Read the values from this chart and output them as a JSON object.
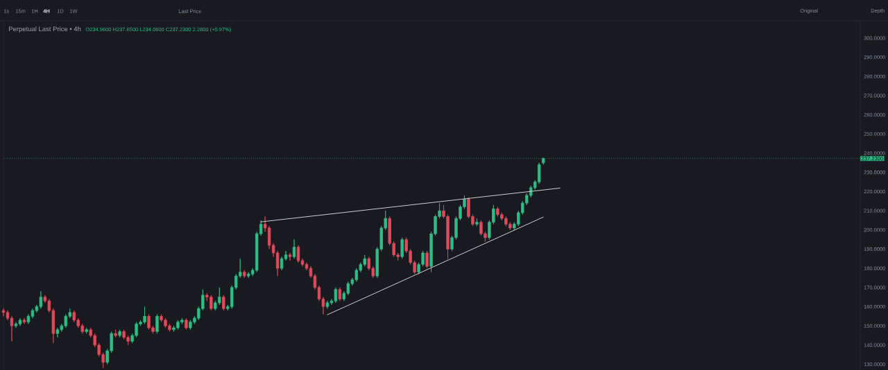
{
  "chart_data": {
    "type": "candlestick",
    "title": "Perpetual Last Price • 4h",
    "subtitle": "O234.9600 H237.6500 L234.0600 C237.2300 2.2800 (+0.97%)",
    "annotations": [
      "1s",
      "15m",
      "1H",
      "4H",
      "1D",
      "1W",
      "Last Price",
      "Original",
      "Depth"
    ],
    "categories": [
      null,
      null,
      null,
      null,
      null,
      null,
      null,
      null,
      null,
      null,
      null,
      null,
      null,
      null,
      null,
      null,
      null,
      null,
      null,
      null,
      null,
      null,
      null,
      null,
      null,
      null,
      null,
      null,
      null,
      null,
      null,
      null,
      null,
      null,
      null,
      null,
      null,
      null,
      null,
      null,
      null,
      null,
      null,
      null,
      null,
      null,
      null,
      null,
      null,
      null,
      null,
      null,
      null,
      null,
      null,
      null,
      null,
      null,
      null,
      null,
      null,
      null,
      null,
      null,
      null,
      null,
      null,
      null,
      null,
      null,
      null,
      null,
      null,
      null,
      null,
      null,
      null,
      null,
      null,
      null,
      null,
      null,
      null,
      null,
      null,
      null,
      null,
      null,
      null,
      null,
      null,
      null,
      null,
      null,
      null,
      null,
      null,
      null,
      null,
      null,
      null,
      null,
      null,
      null,
      null,
      null,
      null,
      null,
      null,
      null,
      null,
      null,
      null,
      null,
      null,
      null,
      null,
      null,
      null,
      null,
      null,
      null,
      null,
      null,
      null,
      null,
      null,
      null,
      null,
      null,
      null,
      null,
      null,
      null,
      null,
      null,
      null,
      null,
      null,
      null,
      null,
      null,
      null,
      null,
      null,
      null,
      null,
      null,
      null,
      null,
      null,
      null,
      null,
      null,
      null,
      null,
      null,
      null,
      null,
      null,
      null,
      null,
      null,
      null,
      null,
      null,
      null,
      null,
      null,
      null,
      null,
      null,
      null,
      null,
      null,
      null,
      null,
      null,
      null,
      null,
      null,
      null,
      null,
      null,
      null,
      null,
      null,
      null,
      null,
      null,
      null,
      null,
      null,
      null,
      null,
      null,
      null,
      null,
      null,
      null,
      null,
      null,
      null,
      null,
      null,
      null,
      null,
      null,
      null,
      null
    ],
    "ohlc": [
      [
        158,
        159,
        155,
        157
      ],
      [
        157,
        158,
        153,
        154
      ],
      [
        154,
        155,
        142,
        150
      ],
      [
        150,
        152,
        149,
        151
      ],
      [
        151,
        154,
        150,
        153
      ],
      [
        153,
        154,
        151,
        152
      ],
      [
        152,
        156,
        151,
        155
      ],
      [
        155,
        159,
        154,
        158
      ],
      [
        158,
        161,
        157,
        160
      ],
      [
        160,
        168,
        159,
        165
      ],
      [
        165,
        166,
        162,
        163
      ],
      [
        163,
        164,
        157,
        158
      ],
      [
        158,
        159,
        141,
        146
      ],
      [
        146,
        149,
        144,
        148
      ],
      [
        148,
        151,
        147,
        150
      ],
      [
        150,
        156,
        149,
        155
      ],
      [
        155,
        159,
        154,
        157
      ],
      [
        157,
        158,
        152,
        153
      ],
      [
        153,
        154,
        149,
        150
      ],
      [
        150,
        151,
        146,
        147
      ],
      [
        147,
        149,
        146,
        148
      ],
      [
        148,
        149,
        144,
        145
      ],
      [
        145,
        146,
        139,
        140
      ],
      [
        140,
        141,
        134,
        135
      ],
      [
        135,
        136,
        128,
        131
      ],
      [
        131,
        138,
        130,
        137
      ],
      [
        137,
        147,
        136,
        146
      ],
      [
        146,
        148,
        144,
        145
      ],
      [
        145,
        148,
        144,
        147
      ],
      [
        147,
        148,
        143,
        144
      ],
      [
        144,
        145,
        140,
        142
      ],
      [
        142,
        146,
        141,
        145
      ],
      [
        145,
        152,
        144,
        151
      ],
      [
        151,
        153,
        150,
        152
      ],
      [
        152,
        160,
        151,
        155
      ],
      [
        155,
        156,
        148,
        149
      ],
      [
        149,
        150,
        146,
        147
      ],
      [
        147,
        156,
        146,
        155
      ],
      [
        155,
        156,
        152,
        153
      ],
      [
        153,
        154,
        149,
        150
      ],
      [
        150,
        151,
        147,
        148
      ],
      [
        148,
        150,
        147,
        149
      ],
      [
        149,
        153,
        148,
        152
      ],
      [
        152,
        154,
        151,
        153
      ],
      [
        153,
        154,
        148,
        149
      ],
      [
        149,
        153,
        148,
        152
      ],
      [
        152,
        155,
        151,
        154
      ],
      [
        154,
        160,
        153,
        159
      ],
      [
        159,
        169,
        158,
        166
      ],
      [
        166,
        167,
        163,
        165
      ],
      [
        165,
        166,
        158,
        159
      ],
      [
        159,
        163,
        158,
        162
      ],
      [
        162,
        170,
        161,
        165
      ],
      [
        165,
        166,
        158,
        159
      ],
      [
        159,
        161,
        158,
        160
      ],
      [
        160,
        171,
        159,
        170
      ],
      [
        170,
        177,
        169,
        176
      ],
      [
        176,
        185,
        175,
        178
      ],
      [
        178,
        179,
        175,
        176
      ],
      [
        176,
        178,
        175,
        177
      ],
      [
        177,
        180,
        176,
        179
      ],
      [
        179,
        199,
        178,
        198
      ],
      [
        198,
        205,
        197,
        203
      ],
      [
        203,
        207,
        199,
        201
      ],
      [
        201,
        202,
        190,
        192
      ],
      [
        192,
        193,
        186,
        188
      ],
      [
        188,
        189,
        176,
        180
      ],
      [
        180,
        186,
        179,
        185
      ],
      [
        185,
        189,
        184,
        187
      ],
      [
        187,
        188,
        184,
        186
      ],
      [
        186,
        195,
        185,
        191
      ],
      [
        191,
        192,
        183,
        184
      ],
      [
        184,
        185,
        181,
        182
      ],
      [
        182,
        183,
        179,
        180
      ],
      [
        180,
        181,
        175,
        176
      ],
      [
        176,
        177,
        169,
        170
      ],
      [
        170,
        171,
        163,
        164
      ],
      [
        164,
        165,
        156,
        160
      ],
      [
        160,
        163,
        159,
        162
      ],
      [
        162,
        164,
        161,
        163
      ],
      [
        163,
        170,
        162,
        169
      ],
      [
        169,
        170,
        163,
        164
      ],
      [
        164,
        168,
        163,
        167
      ],
      [
        167,
        173,
        166,
        172
      ],
      [
        172,
        175,
        171,
        174
      ],
      [
        174,
        180,
        173,
        179
      ],
      [
        179,
        183,
        178,
        182
      ],
      [
        182,
        187,
        181,
        185
      ],
      [
        185,
        186,
        179,
        180
      ],
      [
        180,
        181,
        175,
        176
      ],
      [
        176,
        191,
        175,
        190
      ],
      [
        190,
        202,
        189,
        201
      ],
      [
        201,
        210,
        200,
        206
      ],
      [
        206,
        207,
        192,
        193
      ],
      [
        193,
        194,
        186,
        187
      ],
      [
        187,
        188,
        184,
        186
      ],
      [
        186,
        196,
        185,
        195
      ],
      [
        195,
        196,
        188,
        189
      ],
      [
        189,
        190,
        182,
        183
      ],
      [
        183,
        184,
        177,
        178
      ],
      [
        178,
        183,
        177,
        182
      ],
      [
        182,
        189,
        181,
        188
      ],
      [
        188,
        189,
        180,
        181
      ],
      [
        181,
        199,
        178,
        198
      ],
      [
        198,
        208,
        197,
        207
      ],
      [
        207,
        214,
        206,
        210
      ],
      [
        210,
        213,
        206,
        207
      ],
      [
        207,
        208,
        185,
        190
      ],
      [
        190,
        197,
        189,
        196
      ],
      [
        196,
        207,
        195,
        206
      ],
      [
        206,
        213,
        205,
        212
      ],
      [
        212,
        218,
        211,
        216
      ],
      [
        216,
        217,
        206,
        207
      ],
      [
        207,
        208,
        202,
        203
      ],
      [
        203,
        206,
        202,
        204
      ],
      [
        204,
        205,
        197,
        198
      ],
      [
        198,
        199,
        194,
        196
      ],
      [
        196,
        205,
        195,
        204
      ],
      [
        204,
        213,
        203,
        211
      ],
      [
        211,
        212,
        207,
        208
      ],
      [
        208,
        209,
        205,
        206
      ],
      [
        206,
        207,
        202,
        203
      ],
      [
        203,
        204,
        200,
        201
      ],
      [
        201,
        204,
        200,
        203
      ],
      [
        203,
        210,
        202,
        209
      ],
      [
        209,
        215,
        208,
        214
      ],
      [
        214,
        219,
        213,
        218
      ],
      [
        218,
        223,
        217,
        222
      ],
      [
        222,
        226,
        221,
        225
      ],
      [
        225,
        235,
        224,
        234
      ],
      [
        234.96,
        237.65,
        234.06,
        237.23
      ],
      null,
      null,
      null,
      null,
      null,
      null,
      null,
      null,
      null,
      null,
      null,
      null,
      null,
      null,
      null,
      null,
      null,
      null,
      null,
      null,
      null,
      null,
      null,
      null,
      null,
      null,
      null,
      null,
      null,
      null,
      null,
      null,
      null,
      null,
      null,
      null,
      null,
      null,
      null,
      null,
      null,
      null,
      null,
      null,
      null,
      null,
      null,
      null,
      null,
      null,
      null,
      null,
      null,
      null,
      null,
      null,
      null,
      null,
      null,
      null,
      null,
      null,
      null,
      null,
      null,
      null,
      null,
      null,
      null,
      null,
      null,
      null,
      null,
      null,
      null,
      null,
      null,
      null,
      null
    ],
    "colors": [
      "#e04a59",
      "#e04a59",
      "#e04a59",
      "#2ebd85",
      "#2ebd85",
      "#e04a59",
      "#2ebd85",
      "#2ebd85",
      "#2ebd85",
      "#2ebd85",
      "#e04a59",
      "#e04a59",
      "#e04a59",
      "#2ebd85",
      "#2ebd85",
      "#2ebd85",
      "#2ebd85",
      "#e04a59",
      "#e04a59",
      "#e04a59",
      "#2ebd85",
      "#e04a59",
      "#e04a59",
      "#e04a59",
      "#e04a59",
      "#2ebd85",
      "#2ebd85",
      "#e04a59",
      "#2ebd85",
      "#e04a59",
      "#e04a59",
      "#2ebd85",
      "#2ebd85",
      "#2ebd85",
      "#2ebd85",
      "#e04a59",
      "#e04a59",
      "#2ebd85",
      "#e04a59",
      "#e04a59",
      "#e04a59",
      "#2ebd85",
      "#2ebd85",
      "#2ebd85",
      "#e04a59",
      "#2ebd85",
      "#2ebd85",
      "#2ebd85",
      "#2ebd85",
      "#e04a59",
      "#e04a59",
      "#2ebd85",
      "#2ebd85",
      "#e04a59",
      "#2ebd85",
      "#2ebd85",
      "#2ebd85",
      "#2ebd85",
      "#e04a59",
      "#2ebd85",
      "#2ebd85",
      "#2ebd85",
      "#2ebd85",
      "#e04a59",
      "#e04a59",
      "#e04a59",
      "#e04a59",
      "#2ebd85",
      "#2ebd85",
      "#e04a59",
      "#2ebd85",
      "#e04a59",
      "#e04a59",
      "#e04a59",
      "#e04a59",
      "#e04a59",
      "#e04a59",
      "#e04a59",
      "#2ebd85",
      "#2ebd85",
      "#2ebd85",
      "#e04a59",
      "#2ebd85",
      "#2ebd85",
      "#2ebd85",
      "#2ebd85",
      "#2ebd85",
      "#2ebd85",
      "#e04a59",
      "#e04a59",
      "#2ebd85",
      "#2ebd85",
      "#2ebd85",
      "#e04a59",
      "#e04a59",
      "#e04a59",
      "#2ebd85",
      "#e04a59",
      "#e04a59",
      "#e04a59",
      "#2ebd85",
      "#2ebd85",
      "#e04a59",
      "#2ebd85",
      "#2ebd85",
      "#2ebd85",
      "#e04a59",
      "#e04a59",
      "#2ebd85",
      "#2ebd85",
      "#2ebd85",
      "#2ebd85",
      "#e04a59",
      "#e04a59",
      "#2ebd85",
      "#e04a59",
      "#e04a59",
      "#2ebd85",
      "#2ebd85",
      "#e04a59",
      "#e04a59",
      "#e04a59",
      "#e04a59",
      "#2ebd85",
      "#2ebd85",
      "#2ebd85",
      "#2ebd85",
      "#2ebd85",
      "#2ebd85",
      "#2ebd85",
      "#2ebd85",
      null,
      null,
      null,
      null,
      null,
      null,
      null,
      null,
      null,
      null,
      null,
      null,
      null,
      null,
      null,
      null,
      null,
      null,
      null,
      null,
      null,
      null,
      null,
      null,
      null,
      null,
      null,
      null,
      null,
      null,
      null,
      null,
      null,
      null,
      null,
      null,
      null,
      null,
      null,
      null,
      null,
      null,
      null,
      null,
      null,
      null,
      null,
      null,
      null,
      null,
      null,
      null,
      null,
      null,
      null,
      null,
      null,
      null,
      null,
      null,
      null,
      null,
      null,
      null,
      null,
      null,
      null,
      null,
      null,
      null,
      null,
      null,
      null,
      null,
      null,
      null,
      null,
      null,
      null
    ],
    "series": [
      {
        "type": "line",
        "color": "#d0d0d0",
        "values": [
          null,
          null,
          null,
          null,
          null,
          null,
          null,
          null,
          null,
          null,
          null,
          null,
          null,
          null,
          null,
          null,
          null,
          null,
          null,
          null,
          null,
          null,
          null,
          null,
          null,
          null,
          null,
          null,
          null,
          null,
          null,
          null,
          null,
          null,
          null,
          null,
          null,
          null,
          null,
          null,
          null,
          null,
          null,
          null,
          null,
          null,
          null,
          null,
          null,
          null,
          null,
          null,
          null,
          null,
          null,
          null,
          null,
          null,
          null,
          null,
          null,
          null,
          204.2,
          null,
          null,
          null,
          null,
          null,
          null,
          null,
          null,
          null,
          null,
          null,
          null,
          null,
          null,
          null,
          null,
          null,
          null,
          null,
          null,
          null,
          null,
          null,
          null,
          null,
          null,
          null,
          null,
          null,
          null,
          null,
          null,
          null,
          null,
          null,
          null,
          null,
          null,
          null,
          null,
          null,
          null,
          null,
          null,
          null,
          null,
          null,
          null,
          null,
          null,
          null,
          null,
          null,
          null,
          null,
          null,
          null,
          null,
          null,
          null,
          null,
          null,
          null,
          null,
          null,
          null,
          null,
          null,
          null,
          null,
          null,
          221.8,
          null,
          null,
          null,
          null,
          null,
          null,
          null,
          null,
          null,
          null,
          null,
          null,
          null,
          null,
          null,
          null,
          null,
          null,
          null,
          null,
          null,
          null,
          null,
          null,
          null,
          null,
          null,
          null,
          null,
          null,
          null,
          null,
          null,
          null,
          null,
          null,
          null,
          null,
          null,
          null,
          null,
          null,
          null,
          null,
          null,
          null,
          null,
          null,
          null,
          null,
          null,
          null,
          null,
          null,
          null,
          null,
          null,
          null,
          null,
          null,
          null,
          null,
          null,
          null,
          null,
          null,
          null,
          null,
          null,
          null,
          null,
          null,
          null,
          null,
          null
        ]
      },
      {
        "type": "line",
        "color": "#d0d0d0",
        "values": [
          null,
          null,
          null,
          null,
          null,
          null,
          null,
          null,
          null,
          null,
          null,
          null,
          null,
          null,
          null,
          null,
          null,
          null,
          null,
          null,
          null,
          null,
          null,
          null,
          null,
          null,
          null,
          null,
          null,
          null,
          null,
          null,
          null,
          null,
          null,
          null,
          null,
          null,
          null,
          null,
          null,
          null,
          null,
          null,
          null,
          null,
          null,
          null,
          null,
          null,
          null,
          null,
          null,
          null,
          null,
          null,
          null,
          null,
          null,
          null,
          null,
          null,
          null,
          null,
          null,
          null,
          null,
          null,
          null,
          null,
          null,
          null,
          null,
          null,
          null,
          null,
          null,
          null,
          155.8,
          null,
          null,
          null,
          null,
          null,
          null,
          null,
          null,
          null,
          null,
          null,
          null,
          null,
          null,
          null,
          null,
          null,
          null,
          null,
          null,
          null,
          null,
          null,
          null,
          null,
          null,
          null,
          null,
          null,
          null,
          null,
          null,
          null,
          null,
          null,
          null,
          null,
          null,
          null,
          null,
          null,
          null,
          null,
          null,
          null,
          null,
          null,
          null,
          null,
          null,
          null,
          206.7,
          null,
          null,
          null,
          null,
          null,
          null,
          null,
          null,
          null,
          null,
          null,
          null,
          null,
          null,
          null,
          null,
          null,
          null,
          null,
          null,
          null,
          null,
          null,
          null,
          null,
          null,
          null,
          null,
          null,
          null,
          null,
          null,
          null,
          null,
          null,
          null,
          null,
          null,
          null,
          null,
          null,
          null,
          null,
          null,
          null,
          null,
          null,
          null,
          null,
          null,
          null,
          null,
          null,
          null,
          null,
          null,
          null,
          null,
          null,
          null,
          null,
          null,
          null,
          null,
          null,
          null,
          null,
          null,
          null,
          null,
          null,
          null,
          null,
          null,
          null,
          null,
          null,
          null,
          null
        ]
      }
    ],
    "ref_lines": [
      {
        "axis": "y",
        "value": 237.23,
        "label": "237.2300",
        "color": "#2ebd85",
        "line_style": "dotted"
      }
    ],
    "ylim": [
      127,
      309
    ],
    "yticks": [
      {
        "value": 130,
        "label": "130.0000"
      },
      {
        "value": 140,
        "label": "140.0000"
      },
      {
        "value": 150,
        "label": "150.0000"
      },
      {
        "value": 160,
        "label": "160.0000"
      },
      {
        "value": 170,
        "label": "170.0000"
      },
      {
        "value": 180,
        "label": "180.0000"
      },
      {
        "value": 190,
        "label": "190.0000"
      },
      {
        "value": 200,
        "label": "200.0000"
      },
      {
        "value": 210,
        "label": "210.0000"
      },
      {
        "value": 220,
        "label": "220.0000"
      },
      {
        "value": 230,
        "label": "230.0000"
      },
      {
        "value": 240,
        "label": "240.0000"
      },
      {
        "value": 250,
        "label": "250.0000"
      },
      {
        "value": 260,
        "label": "260.0000"
      },
      {
        "value": 270,
        "label": "270.0000"
      },
      {
        "value": 280,
        "label": "280.0000"
      },
      {
        "value": 290,
        "label": "290.0000"
      },
      {
        "value": 300,
        "label": "300.0000"
      }
    ],
    "tick_labels": "y"
  }
}
